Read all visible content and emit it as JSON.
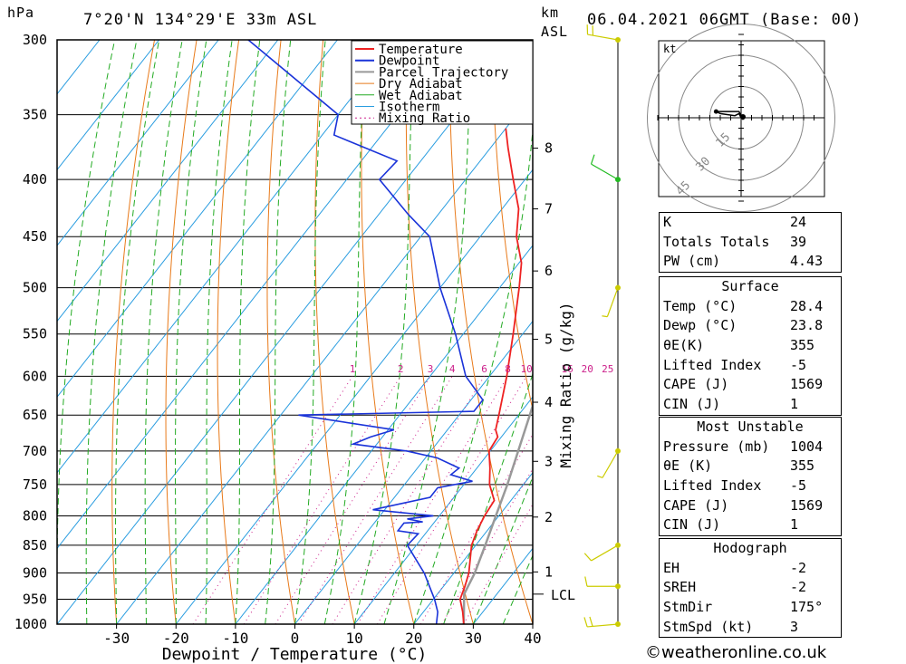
{
  "header": {
    "hpa_label": "hPa",
    "location": "7°20'N  134°29'E  33m  ASL",
    "km_label": "km",
    "asl_label": "ASL",
    "datetime": "06.04.2021  06GMT  (Base: 00)"
  },
  "chart_data": {
    "type": "skew-t log-p",
    "title": "7°20'N 134°29'E 33m ASL",
    "xlabel": "Dewpoint / Temperature (°C)",
    "ylabel": "hPa",
    "right_axis_label": "Mixing Ratio (g/kg)",
    "xlim": [
      -40,
      40
    ],
    "ylim": [
      1000,
      300
    ],
    "x_ticks": [
      -30,
      -20,
      -10,
      0,
      10,
      20,
      30,
      40
    ],
    "pressure_levels": [
      300,
      350,
      400,
      450,
      500,
      550,
      600,
      650,
      700,
      750,
      800,
      850,
      900,
      950,
      1000
    ],
    "km_ticks": [
      {
        "km": "8",
        "p": 375
      },
      {
        "km": "7",
        "p": 425
      },
      {
        "km": "6",
        "p": 483
      },
      {
        "km": "5",
        "p": 556
      },
      {
        "km": "4",
        "p": 633
      },
      {
        "km": "3",
        "p": 715
      },
      {
        "km": "2",
        "p": 802
      },
      {
        "km": "1",
        "p": 898
      }
    ],
    "lcl": {
      "label": "LCL",
      "p": 940
    },
    "mixing_ratio_labels": [
      "1",
      "2",
      "3",
      "4",
      "6",
      "8",
      "10",
      "16",
      "20",
      "25"
    ],
    "legend": [
      "Temperature",
      "Dewpoint",
      "Parcel Trajectory",
      "Dry Adiabat",
      "Wet Adiabat",
      "Isotherm",
      "Mixing Ratio"
    ],
    "colors": {
      "temperature": "#ee2222",
      "dewpoint": "#1a33d9",
      "parcel": "#999999",
      "dry_adiabat": "#e87a1a",
      "wet_adiabat": "#22aa22",
      "isotherm": "#2a9de0",
      "mixing_ratio": "#cc1f8a",
      "wind": "#cccc00"
    },
    "series": [
      {
        "name": "Temperature",
        "points": [
          [
            1000,
            28.4
          ],
          [
            975,
            26.6
          ],
          [
            950,
            24.5
          ],
          [
            925,
            23.6
          ],
          [
            900,
            22.5
          ],
          [
            850,
            19.3
          ],
          [
            825,
            18.3
          ],
          [
            800,
            17.6
          ],
          [
            775,
            17.2
          ],
          [
            750,
            14.3
          ],
          [
            725,
            12.2
          ],
          [
            700,
            9.8
          ],
          [
            680,
            9.4
          ],
          [
            670,
            8.1
          ],
          [
            650,
            6.7
          ],
          [
            600,
            2.9
          ],
          [
            550,
            -1.6
          ],
          [
            500,
            -6.7
          ],
          [
            475,
            -9.6
          ],
          [
            450,
            -13.9
          ],
          [
            425,
            -17.2
          ],
          [
            400,
            -22.0
          ],
          [
            375,
            -27.0
          ],
          [
            360,
            -30.0
          ]
        ]
      },
      {
        "name": "Dewpoint",
        "points": [
          [
            1000,
            23.8
          ],
          [
            975,
            22.4
          ],
          [
            950,
            20.2
          ],
          [
            900,
            15.0
          ],
          [
            850,
            8.5
          ],
          [
            830,
            8.8
          ],
          [
            825,
            5.0
          ],
          [
            812,
            5.0
          ],
          [
            810,
            8.0
          ],
          [
            805,
            5.0
          ],
          [
            800,
            9.0
          ],
          [
            790,
            -2.0
          ],
          [
            770,
            6.0
          ],
          [
            755,
            6.0
          ],
          [
            745,
            11.0
          ],
          [
            735,
            6.5
          ],
          [
            725,
            7.0
          ],
          [
            710,
            2.0
          ],
          [
            700,
            -4.0
          ],
          [
            690,
            -14.0
          ],
          [
            680,
            -12.0
          ],
          [
            670,
            -9.0
          ],
          [
            650,
            -27.0
          ],
          [
            645,
            2.0
          ],
          [
            630,
            2.0
          ],
          [
            600,
            -4.0
          ],
          [
            550,
            -11.3
          ],
          [
            500,
            -20.0
          ],
          [
            450,
            -28.5
          ],
          [
            430,
            -35.0
          ],
          [
            400,
            -44.5
          ],
          [
            385,
            -44.0
          ],
          [
            365,
            -58.0
          ],
          [
            350,
            -60.0
          ],
          [
            300,
            -85.0
          ]
        ]
      },
      {
        "name": "Parcel Trajectory",
        "points": [
          [
            1000,
            28.4
          ],
          [
            940,
            24.5
          ],
          [
            900,
            23.5
          ],
          [
            850,
            21.6
          ],
          [
            800,
            19.5
          ],
          [
            750,
            17.3
          ],
          [
            700,
            14.7
          ],
          [
            650,
            11.9
          ],
          [
            600,
            8.8
          ],
          [
            550,
            5.2
          ],
          [
            500,
            1.0
          ],
          [
            450,
            -4.0
          ],
          [
            400,
            -10.0
          ],
          [
            370,
            -14.0
          ]
        ]
      }
    ],
    "wind_barbs": [
      {
        "p": 300,
        "dir": 280,
        "kt": 20
      },
      {
        "p": 400,
        "dir": 300,
        "kt": 10
      },
      {
        "p": 500,
        "dir": 200,
        "kt": 5
      },
      {
        "p": 700,
        "dir": 210,
        "kt": 5
      },
      {
        "p": 850,
        "dir": 240,
        "kt": 10
      },
      {
        "p": 925,
        "dir": 270,
        "kt": 10
      },
      {
        "p": 1000,
        "dir": 265,
        "kt": 15
      }
    ],
    "hodograph": {
      "unit": "kt",
      "ring_labels": [
        "15",
        "30",
        "45"
      ],
      "trace_kt": [
        [
          0,
          0
        ],
        [
          -1,
          2
        ],
        [
          -3,
          1
        ],
        [
          -10,
          2
        ],
        [
          -12,
          3
        ],
        [
          -1,
          3
        ],
        [
          1,
          -1
        ]
      ]
    }
  },
  "indices": {
    "basic": [
      {
        "label": "K",
        "value": "24"
      },
      {
        "label": "Totals Totals",
        "value": "39"
      },
      {
        "label": "PW (cm)",
        "value": "4.43"
      }
    ],
    "surface_title": "Surface",
    "surface": [
      {
        "label": "Temp (°C)",
        "value": "28.4"
      },
      {
        "label": "Dewp (°C)",
        "value": "23.8"
      },
      {
        "label": "θE(K)",
        "value": "355"
      },
      {
        "label": "Lifted Index",
        "value": "-5"
      },
      {
        "label": "CAPE (J)",
        "value": "1569"
      },
      {
        "label": "CIN (J)",
        "value": "1"
      }
    ],
    "most_unstable_title": "Most Unstable",
    "most_unstable": [
      {
        "label": "Pressure (mb)",
        "value": "1004"
      },
      {
        "label": "θE (K)",
        "value": "355"
      },
      {
        "label": "Lifted Index",
        "value": "-5"
      },
      {
        "label": "CAPE (J)",
        "value": "1569"
      },
      {
        "label": "CIN (J)",
        "value": "1"
      }
    ],
    "hodograph_title": "Hodograph",
    "hodograph": [
      {
        "label": "EH",
        "value": "-2"
      },
      {
        "label": "SREH",
        "value": "-2"
      },
      {
        "label": "StmDir",
        "value": "175°"
      },
      {
        "label": "StmSpd (kt)",
        "value": "3"
      }
    ]
  },
  "footer": {
    "copyright": "©weatheronline.co.uk"
  }
}
